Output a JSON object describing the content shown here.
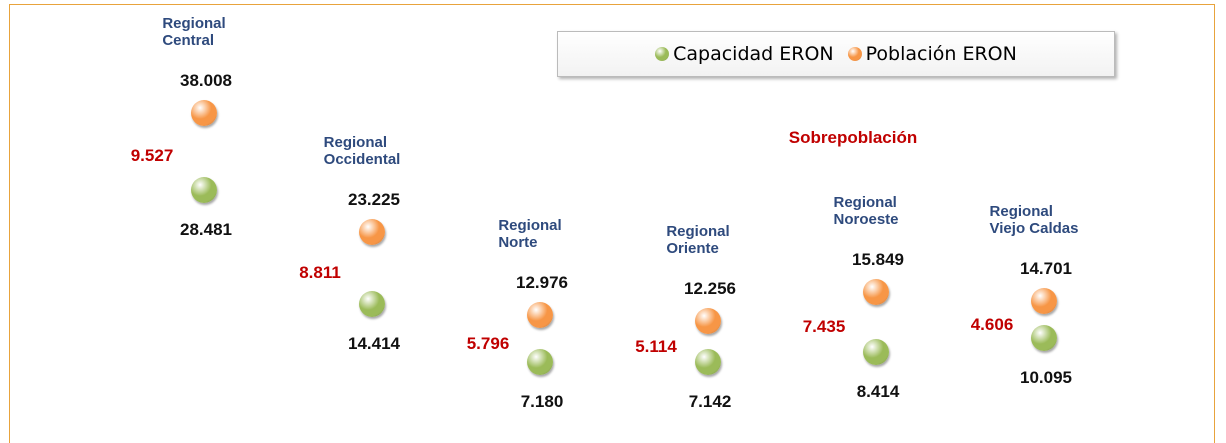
{
  "chart_data": {
    "type": "dot",
    "categories": [
      "Regional\nCentral",
      "Regional\nOccidental",
      "Regional\nNorte",
      "Regional\nOriente",
      "Regional\nNoroeste",
      "Regional\nViejo Caldas"
    ],
    "series": [
      {
        "name": "Capacidad ERON",
        "color": "#9bbb59",
        "values": [
          28481,
          14414,
          7180,
          7142,
          8414,
          10095
        ],
        "value_labels": [
          "28.481",
          "14.414",
          "7.180",
          "7.142",
          "8.414",
          "10.095"
        ]
      },
      {
        "name": "Población ERON",
        "color": "#f79646",
        "values": [
          38008,
          23225,
          12976,
          12256,
          15849,
          14701
        ],
        "value_labels": [
          "38.008",
          "23.225",
          "12.976",
          "12.256",
          "15.849",
          "14.701"
        ]
      },
      {
        "name": "Sobrepoblación",
        "color": "#c00000",
        "values": [
          9527,
          8811,
          5796,
          5114,
          7435,
          4606
        ],
        "value_labels": [
          "9.527",
          "8.811",
          "5.796",
          "5.114",
          "7.435",
          "4.606"
        ]
      }
    ],
    "ylim": [
      0,
      52000
    ]
  }
}
